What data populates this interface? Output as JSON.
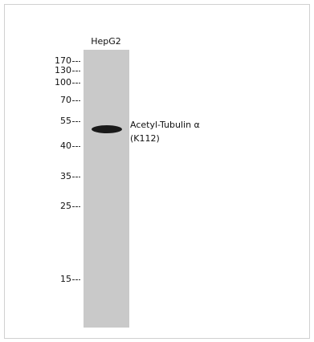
{
  "lane_label": "HepG2",
  "markers": [
    "170",
    "130",
    "100",
    "70",
    "55",
    "40",
    "35",
    "25",
    "15"
  ],
  "band_label": [
    "Acetyl-Tubulin α",
    "(K112)"
  ]
}
